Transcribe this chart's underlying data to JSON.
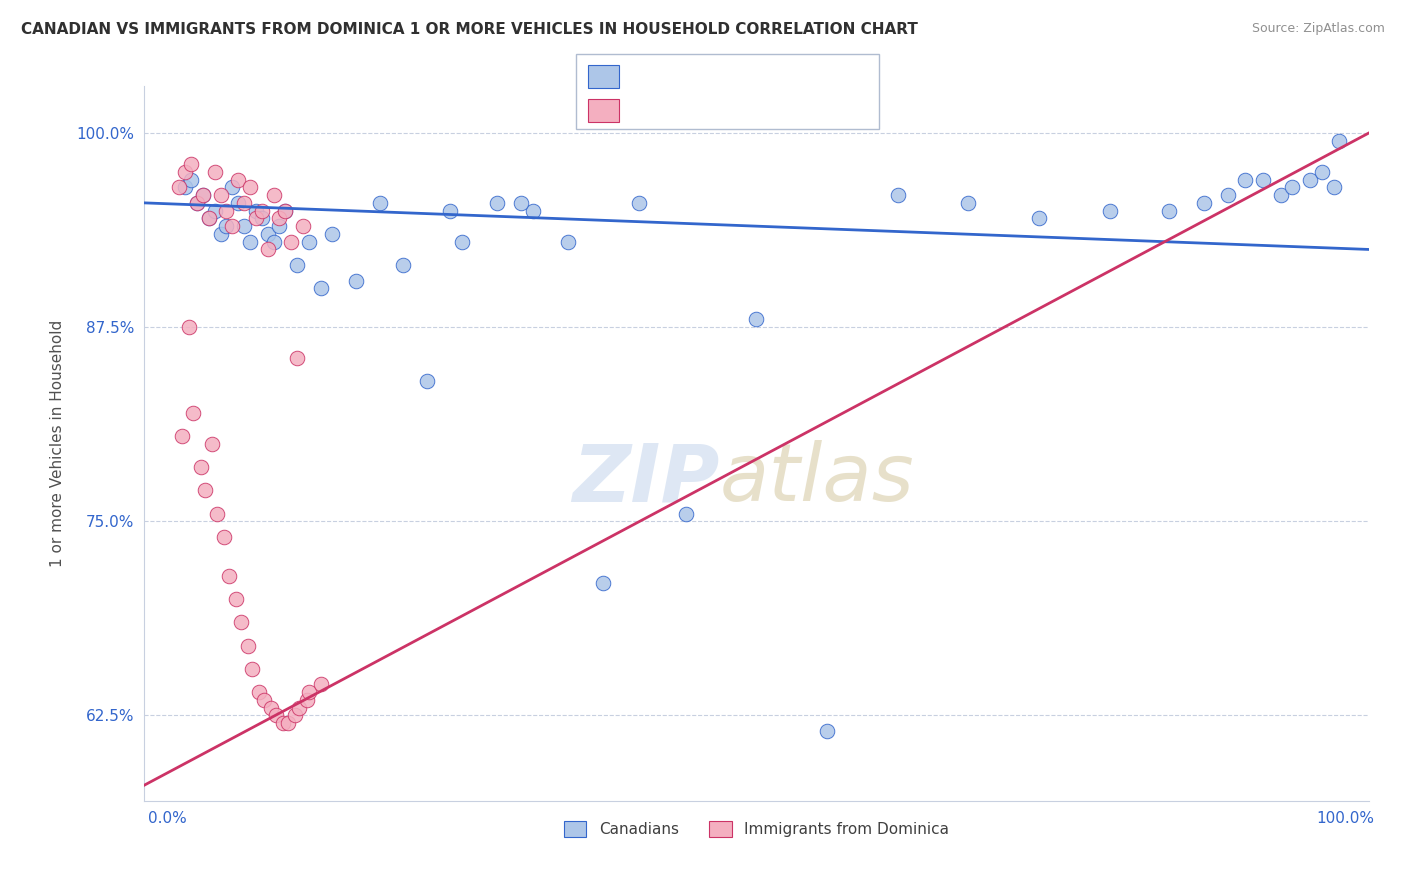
{
  "title": "CANADIAN VS IMMIGRANTS FROM DOMINICA 1 OR MORE VEHICLES IN HOUSEHOLD CORRELATION CHART",
  "source": "Source: ZipAtlas.com",
  "ylabel": "1 or more Vehicles in Household",
  "blue_color": "#adc6e8",
  "pink_color": "#f4afc0",
  "trend_blue_color": "#3366cc",
  "trend_pink_color": "#cc3366",
  "canadians_x": [
    1.5,
    2.0,
    2.5,
    3.0,
    3.5,
    4.0,
    4.5,
    5.0,
    5.5,
    6.0,
    6.5,
    7.0,
    7.5,
    8.0,
    8.5,
    9.0,
    9.5,
    10.0,
    11.0,
    12.0,
    13.0,
    14.0,
    16.0,
    18.0,
    20.0,
    22.0,
    25.0,
    28.0,
    31.0,
    34.0,
    37.0,
    40.0,
    44.0,
    50.0,
    56.0,
    62.0,
    68.0,
    74.0,
    80.0,
    85.0,
    88.0,
    90.0,
    91.5,
    93.0,
    94.5,
    95.5,
    97.0,
    98.0,
    99.0,
    99.5,
    24.0,
    30.0
  ],
  "canadians_y": [
    96.5,
    97.0,
    95.5,
    96.0,
    94.5,
    95.0,
    93.5,
    94.0,
    96.5,
    95.5,
    94.0,
    93.0,
    95.0,
    94.5,
    93.5,
    93.0,
    94.0,
    95.0,
    91.5,
    93.0,
    90.0,
    93.5,
    90.5,
    95.5,
    91.5,
    84.0,
    93.0,
    95.5,
    95.0,
    93.0,
    71.0,
    95.5,
    75.5,
    88.0,
    61.5,
    96.0,
    95.5,
    94.5,
    95.0,
    95.0,
    95.5,
    96.0,
    97.0,
    97.0,
    96.0,
    96.5,
    97.0,
    97.5,
    96.5,
    99.5,
    95.0,
    95.5
  ],
  "dominica_x": [
    1.0,
    1.5,
    2.0,
    2.5,
    3.0,
    3.5,
    4.0,
    4.5,
    5.0,
    5.5,
    6.0,
    6.5,
    7.0,
    7.5,
    8.0,
    8.5,
    9.0,
    9.5,
    10.0,
    10.5,
    11.0,
    11.5,
    1.2,
    1.8,
    2.2,
    2.8,
    3.2,
    3.8,
    4.2,
    4.8,
    5.2,
    5.8,
    6.2,
    6.8,
    7.2,
    7.8,
    8.2,
    8.8,
    9.2,
    9.8,
    10.2,
    10.8,
    11.2,
    11.8,
    12.0,
    13.0
  ],
  "dominica_y": [
    96.5,
    97.5,
    98.0,
    95.5,
    96.0,
    94.5,
    97.5,
    96.0,
    95.0,
    94.0,
    97.0,
    95.5,
    96.5,
    94.5,
    95.0,
    92.5,
    96.0,
    94.5,
    95.0,
    93.0,
    85.5,
    94.0,
    80.5,
    87.5,
    82.0,
    78.5,
    77.0,
    80.0,
    75.5,
    74.0,
    71.5,
    70.0,
    68.5,
    67.0,
    65.5,
    64.0,
    63.5,
    63.0,
    62.5,
    62.0,
    62.0,
    62.5,
    63.0,
    63.5,
    64.0,
    64.5
  ],
  "xlim": [
    -2,
    102
  ],
  "ylim": [
    57,
    103
  ],
  "yticks": [
    62.5,
    75.0,
    87.5,
    100.0
  ],
  "xticks": [
    0,
    100
  ]
}
